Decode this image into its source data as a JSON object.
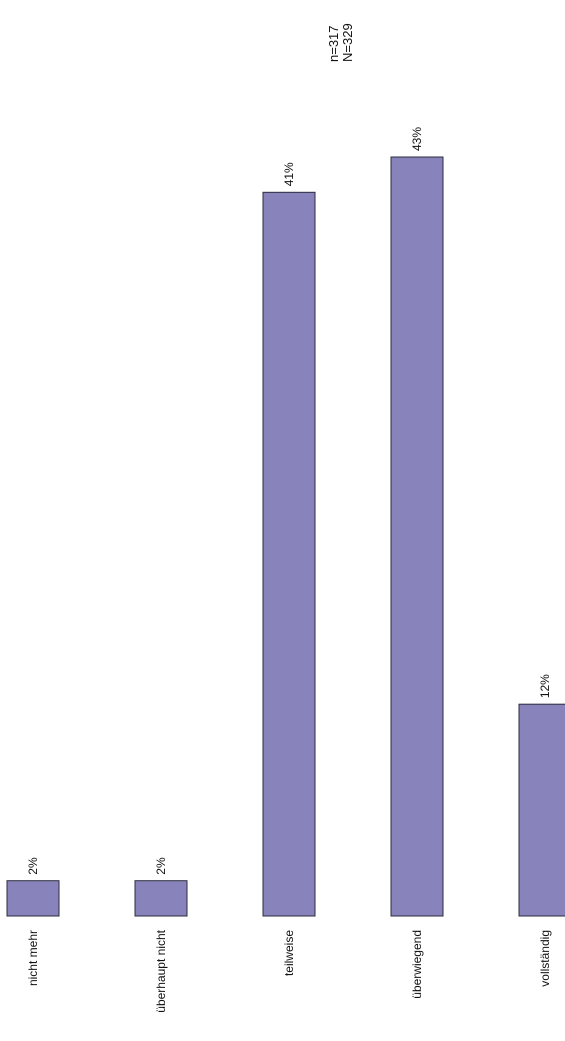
{
  "sample": {
    "n_label": "n=317",
    "N_label": "N=329"
  },
  "chart_data": {
    "type": "bar",
    "orientation": "rotated-90",
    "categories": [
      "nicht mehr",
      "überhaupt nicht",
      "teilweise",
      "überwiegend",
      "vollständig"
    ],
    "values": [
      2,
      2,
      41,
      43,
      12
    ],
    "value_labels": [
      "2%",
      "2%",
      "41%",
      "43%",
      "12%"
    ],
    "unit": "%",
    "title": "",
    "xlabel": "",
    "ylabel": "",
    "ylim": [
      0,
      43
    ],
    "grid": false,
    "bar_color": "#8883bb",
    "bar_outline": "#2b2b3d"
  }
}
